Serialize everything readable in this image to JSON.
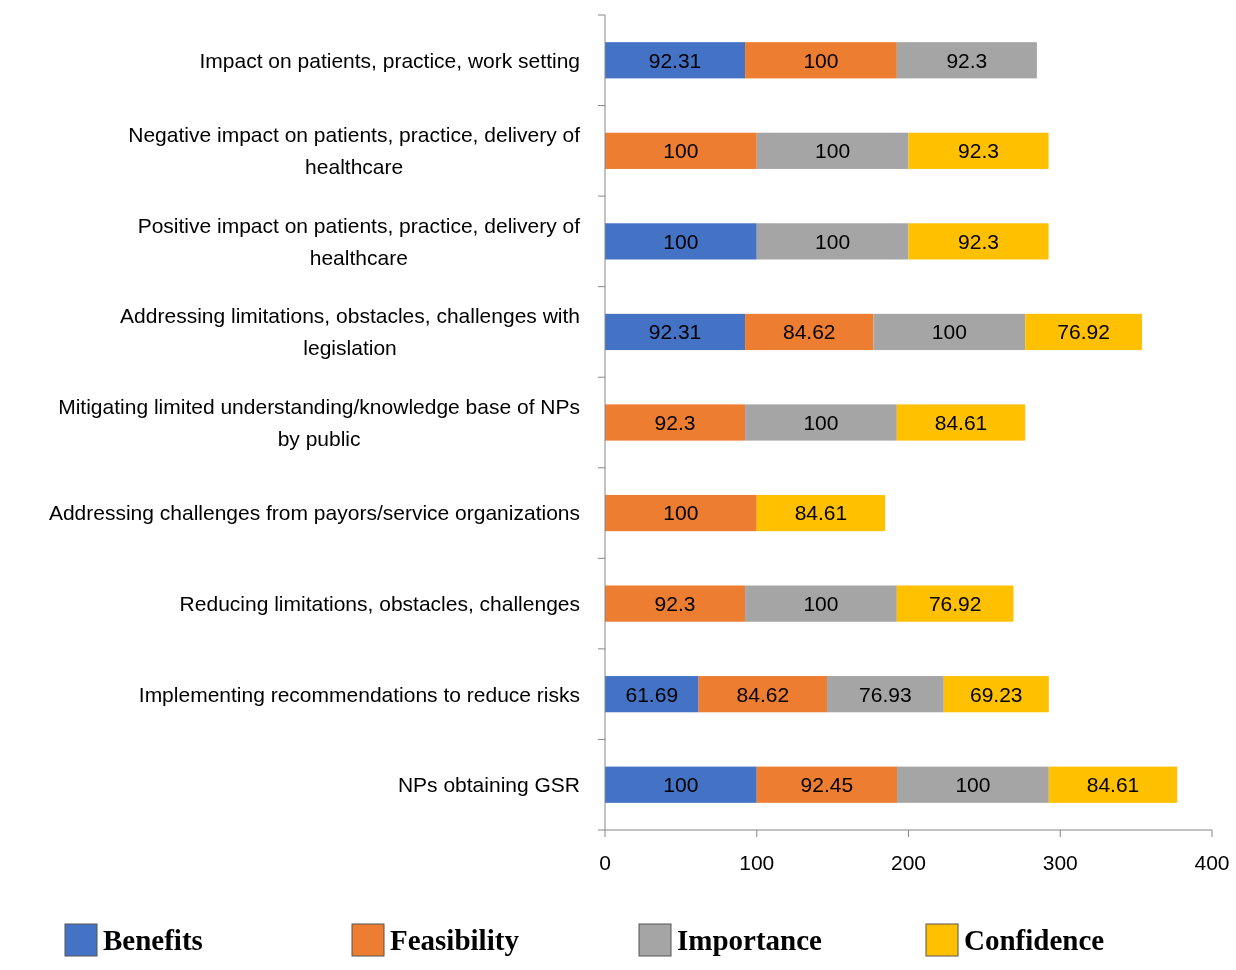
{
  "chart_data": {
    "type": "bar",
    "orientation": "horizontal",
    "stacked": true,
    "data_labels": true,
    "grid": false,
    "legend": "bottom",
    "categories": [
      "Impact on patients, practice, work setting",
      "Negative impact on patients, practice, delivery of healthcare",
      "Positive impact on patients, practice, delivery of healthcare",
      "Addressing limitations, obstacles, challenges with legislation",
      "Mitigating limited understanding/knowledge base of NPs by public",
      "Addressing challenges from payors/service organizations",
      "Reducing limitations, obstacles, challenges",
      "Implementing recommendations to reduce risks",
      "NPs obtaining GSR"
    ],
    "series": [
      {
        "name": "Benefits",
        "color": "#4472c4",
        "values": [
          92.31,
          null,
          100,
          92.31,
          null,
          null,
          null,
          61.69,
          100
        ]
      },
      {
        "name": "Feasibility",
        "color": "#ed7d31",
        "values": [
          100,
          100,
          null,
          84.62,
          92.3,
          100,
          92.3,
          84.62,
          92.45
        ]
      },
      {
        "name": "Importance",
        "color": "#a5a5a5",
        "values": [
          92.3,
          100,
          100,
          100,
          100,
          null,
          100,
          76.93,
          100
        ]
      },
      {
        "name": "Confidence",
        "color": "#ffc000",
        "values": [
          null,
          92.3,
          92.3,
          76.92,
          84.61,
          84.61,
          76.92,
          69.23,
          84.61
        ]
      }
    ],
    "xlim": [
      0,
      400
    ],
    "xticks": [
      0,
      100,
      200,
      300,
      400
    ]
  }
}
